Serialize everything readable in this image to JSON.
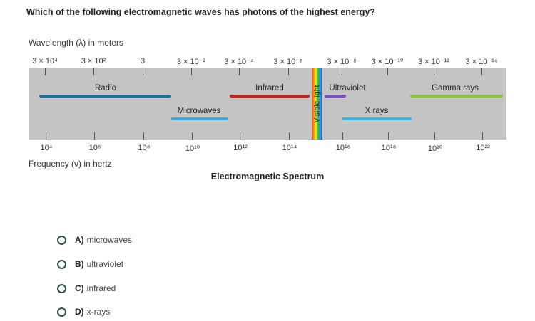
{
  "question": "Which of the following electromagnetic waves has photons of the highest energy?",
  "diagram": {
    "wavelength_label": "Wavelength (λ) in meters",
    "frequency_label": "Frequency (ν) in hertz",
    "title": "Electromagnetic Spectrum",
    "wavelength_ticks": [
      "3 × 10⁴",
      "3 × 10²",
      "3",
      "3 × 10⁻²",
      "3 × 10⁻⁴",
      "3 × 10⁻⁶",
      "3 × 10⁻⁸",
      "3 × 10⁻¹⁰",
      "3 × 10⁻¹²",
      "3 × 10⁻¹⁴"
    ],
    "frequency_ticks": [
      "10⁴",
      "10⁶",
      "10⁸",
      "10¹⁰",
      "10¹²",
      "10¹⁴",
      "10¹⁶",
      "10¹⁸",
      "10²⁰",
      "10²²"
    ],
    "bands": [
      {
        "name": "Radio",
        "color": "#1e6e9a"
      },
      {
        "name": "Microwaves",
        "color": "#3aa9dc"
      },
      {
        "name": "Infrared",
        "color": "#d0201e"
      },
      {
        "name": "Visible light",
        "color": "#f90"
      },
      {
        "name": "Ultraviolet",
        "color": "#7b4fc7"
      },
      {
        "name": "X rays",
        "color": "#35b8e0"
      },
      {
        "name": "Gamma rays",
        "color": "#8cc43a"
      }
    ]
  },
  "options": [
    {
      "letter": "A)",
      "text": "microwaves"
    },
    {
      "letter": "B)",
      "text": "ultraviolet"
    },
    {
      "letter": "C)",
      "text": "infrared"
    },
    {
      "letter": "D)",
      "text": "x-rays"
    }
  ]
}
